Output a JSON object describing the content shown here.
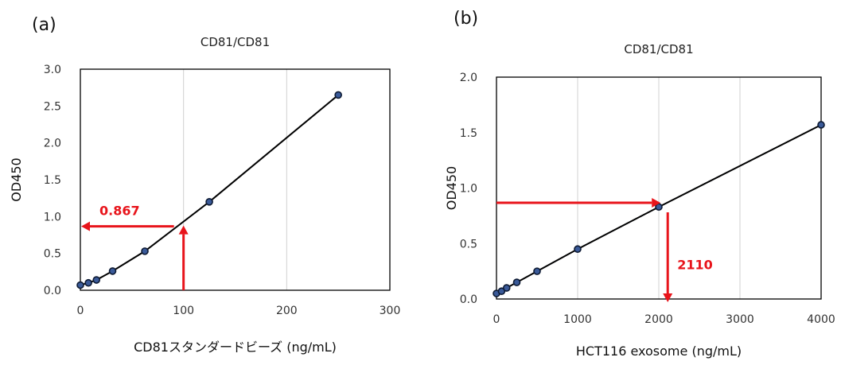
{
  "panels": [
    {
      "panel_label": "(a)",
      "arrow_color": "#e8141b",
      "chart_data": {
        "type": "line",
        "title": "CD81/CD81",
        "xlabel": "CD81スタンダードビーズ (ng/mL)",
        "ylabel": "OD450",
        "xlim": [
          0,
          300
        ],
        "ylim": [
          0,
          3.0
        ],
        "xticks": [
          0,
          100,
          200,
          300
        ],
        "yticks": [
          "0.0",
          "0.5",
          "1.0",
          "1.5",
          "2.0",
          "2.5",
          "3.0"
        ],
        "grid": "vertical",
        "x": [
          0,
          7.8,
          15.6,
          31.25,
          62.5,
          125,
          250
        ],
        "y": [
          0.07,
          0.1,
          0.14,
          0.26,
          0.53,
          1.2,
          2.65
        ],
        "annotation": {
          "label": "0.867",
          "x": 100,
          "y": 0.867
        }
      }
    },
    {
      "panel_label": "(b)",
      "arrow_color": "#e8141b",
      "chart_data": {
        "type": "line",
        "title": "CD81/CD81",
        "xlabel": "HCT116 exosome (ng/mL)",
        "ylabel": "OD450",
        "xlim": [
          0,
          4000
        ],
        "ylim": [
          0,
          2.0
        ],
        "xticks": [
          0,
          1000,
          2000,
          3000,
          4000
        ],
        "yticks": [
          "0.0",
          "0.5",
          "1.0",
          "1.5",
          "2.0"
        ],
        "grid": "vertical",
        "x": [
          0,
          62.5,
          125,
          250,
          500,
          1000,
          2000,
          4000
        ],
        "y": [
          0.05,
          0.07,
          0.1,
          0.15,
          0.25,
          0.45,
          0.83,
          1.57
        ],
        "annotation": {
          "label": "2110",
          "x": 2110,
          "y": 0.867
        }
      }
    }
  ]
}
